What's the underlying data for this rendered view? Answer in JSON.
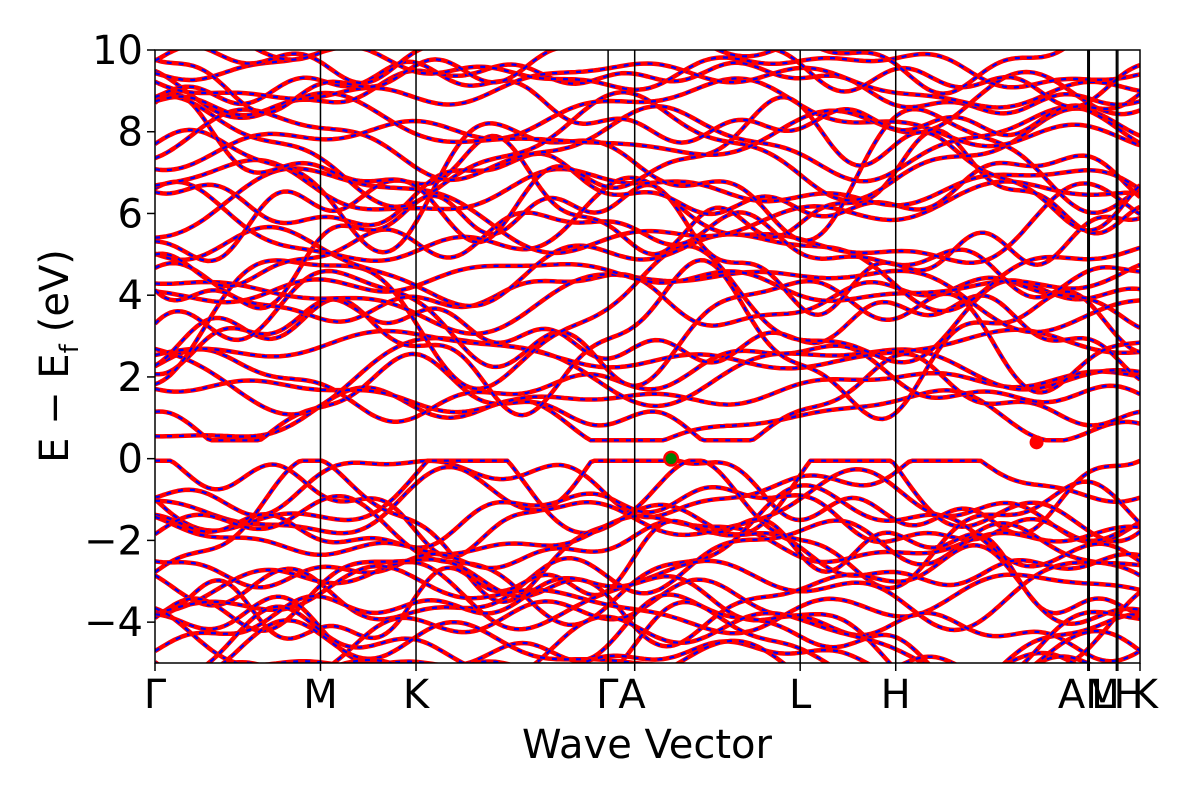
{
  "chart_data": {
    "type": "line",
    "title": "",
    "xlabel": "Wave Vector",
    "ylabel": {
      "main": "E − E",
      "sub": "f",
      "unit": "(eV)"
    },
    "ylim": [
      -5,
      10
    ],
    "yticks": [
      {
        "value": -4,
        "label": "−4"
      },
      {
        "value": -2,
        "label": "−2"
      },
      {
        "value": 0,
        "label": "0"
      },
      {
        "value": 2,
        "label": "2"
      },
      {
        "value": 4,
        "label": "4"
      },
      {
        "value": 6,
        "label": "6"
      },
      {
        "value": 8,
        "label": "8"
      },
      {
        "value": 10,
        "label": "10"
      }
    ],
    "xlim": [
      0,
      1
    ],
    "kpoints": [
      {
        "label": "Γ",
        "pos": 0.0
      },
      {
        "label": "M",
        "pos": 0.168
      },
      {
        "label": "K",
        "pos": 0.265
      },
      {
        "label": "Γ",
        "pos": 0.46
      },
      {
        "label": "A",
        "pos": 0.487
      },
      {
        "label": "L",
        "pos": 0.655
      },
      {
        "label": "H",
        "pos": 0.752
      },
      {
        "label": "A",
        "pos": 0.947
      },
      {
        "label": "M",
        "pos": 0.9485
      },
      {
        "label": "L",
        "pos": 0.976
      },
      {
        "label": "H",
        "pos": 0.9775
      },
      {
        "label": "K",
        "pos": 1.0
      }
    ],
    "kpoint_label_text": [
      "Γ",
      "M",
      "K",
      "ΓA",
      "L",
      "H",
      "AM",
      "LH",
      "K"
    ],
    "grid": false,
    "legend": "none",
    "series_style": {
      "spin_up_color": "#ff0000",
      "spin_down_color": "#0000ff"
    },
    "bands": {
      "valence_top": -0.05,
      "conduction_bottom": 0.45,
      "count_valence": 22,
      "count_conduction": 34
    },
    "markers": [
      {
        "name": "vbm",
        "x": 0.524,
        "y": 0.0,
        "color": "#008000"
      },
      {
        "name": "vbm-outline",
        "x": 0.524,
        "y": 0.0,
        "color": "#ff0000"
      },
      {
        "name": "cbm",
        "x": 0.895,
        "y": 0.4,
        "color": "#ff0000"
      }
    ]
  }
}
